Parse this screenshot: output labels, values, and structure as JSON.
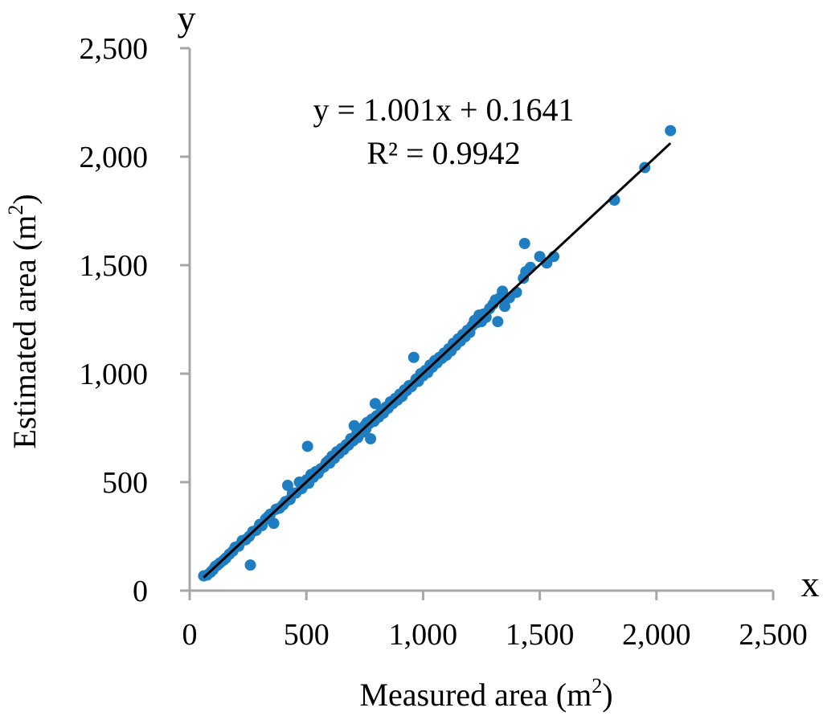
{
  "chart_data": {
    "type": "scatter",
    "xlabel": "Measured area (m",
    "xlabel_sup": "2",
    "xlabel_close": ")",
    "ylabel": "Estimated area (m",
    "ylabel_sup": "2",
    "ylabel_close": ")",
    "x_axis_letter": "x",
    "y_axis_letter": "y",
    "xlim": [
      0,
      2500
    ],
    "ylim": [
      0,
      2500
    ],
    "x_ticks": [
      0,
      500,
      1000,
      1500,
      2000,
      2500
    ],
    "y_ticks": [
      0,
      500,
      1000,
      1500,
      2000,
      2500
    ],
    "x_tick_labels": [
      "0",
      "500",
      "1,000",
      "1,500",
      "2,000",
      "2,500"
    ],
    "y_tick_labels": [
      "0",
      "500",
      "1,000",
      "1,500",
      "2,000",
      "2,500"
    ],
    "grid": false,
    "legend": "none",
    "annotations": {
      "equation": "y = 1.001x + 0.1641",
      "r_squared": "R² = 0.9942"
    },
    "trendline": {
      "slope": 1.001,
      "intercept": 0.1641,
      "x_range": [
        60,
        2060
      ],
      "color": "#000000"
    },
    "marker_color": "#1f7ec1",
    "series": [
      {
        "points": [
          [
            60,
            68
          ],
          [
            75,
            72
          ],
          [
            90,
            85
          ],
          [
            100,
            96
          ],
          [
            110,
            112
          ],
          [
            120,
            118
          ],
          [
            130,
            128
          ],
          [
            145,
            140
          ],
          [
            155,
            150
          ],
          [
            170,
            168
          ],
          [
            185,
            182
          ],
          [
            195,
            200
          ],
          [
            210,
            205
          ],
          [
            225,
            230
          ],
          [
            240,
            235
          ],
          [
            255,
            250
          ],
          [
            260,
            118
          ],
          [
            270,
            272
          ],
          [
            285,
            278
          ],
          [
            300,
            305
          ],
          [
            310,
            300
          ],
          [
            325,
            330
          ],
          [
            335,
            340
          ],
          [
            345,
            352
          ],
          [
            360,
            310
          ],
          [
            370,
            375
          ],
          [
            385,
            380
          ],
          [
            400,
            395
          ],
          [
            410,
            410
          ],
          [
            420,
            485
          ],
          [
            430,
            420
          ],
          [
            440,
            448
          ],
          [
            455,
            450
          ],
          [
            470,
            500
          ],
          [
            480,
            470
          ],
          [
            490,
            488
          ],
          [
            500,
            510
          ],
          [
            505,
            665
          ],
          [
            510,
            495
          ],
          [
            520,
            535
          ],
          [
            530,
            522
          ],
          [
            540,
            548
          ],
          [
            550,
            540
          ],
          [
            560,
            560
          ],
          [
            575,
            570
          ],
          [
            585,
            590
          ],
          [
            595,
            600
          ],
          [
            600,
            588
          ],
          [
            610,
            620
          ],
          [
            620,
            610
          ],
          [
            630,
            640
          ],
          [
            640,
            632
          ],
          [
            650,
            655
          ],
          [
            660,
            650
          ],
          [
            670,
            672
          ],
          [
            680,
            670
          ],
          [
            690,
            700
          ],
          [
            700,
            690
          ],
          [
            705,
            760
          ],
          [
            715,
            720
          ],
          [
            720,
            705
          ],
          [
            730,
            742
          ],
          [
            740,
            730
          ],
          [
            750,
            760
          ],
          [
            755,
            745
          ],
          [
            760,
            775
          ],
          [
            770,
            770
          ],
          [
            775,
            700
          ],
          [
            780,
            790
          ],
          [
            790,
            780
          ],
          [
            795,
            862
          ],
          [
            800,
            805
          ],
          [
            810,
            800
          ],
          [
            820,
            825
          ],
          [
            830,
            818
          ],
          [
            840,
            845
          ],
          [
            850,
            840
          ],
          [
            860,
            870
          ],
          [
            870,
            862
          ],
          [
            880,
            885
          ],
          [
            890,
            878
          ],
          [
            900,
            905
          ],
          [
            910,
            895
          ],
          [
            920,
            925
          ],
          [
            930,
            922
          ],
          [
            940,
            945
          ],
          [
            950,
            940
          ],
          [
            960,
            1075
          ],
          [
            965,
            960
          ],
          [
            970,
            975
          ],
          [
            980,
            965
          ],
          [
            990,
            1000
          ],
          [
            1000,
            990
          ],
          [
            1010,
            1015
          ],
          [
            1020,
            1005
          ],
          [
            1030,
            1040
          ],
          [
            1040,
            1030
          ],
          [
            1050,
            1060
          ],
          [
            1060,
            1050
          ],
          [
            1070,
            1075
          ],
          [
            1080,
            1070
          ],
          [
            1090,
            1095
          ],
          [
            1100,
            1085
          ],
          [
            1110,
            1115
          ],
          [
            1120,
            1105
          ],
          [
            1130,
            1140
          ],
          [
            1140,
            1130
          ],
          [
            1150,
            1160
          ],
          [
            1160,
            1150
          ],
          [
            1170,
            1180
          ],
          [
            1180,
            1170
          ],
          [
            1190,
            1200
          ],
          [
            1200,
            1190
          ],
          [
            1210,
            1220
          ],
          [
            1220,
            1245
          ],
          [
            1230,
            1235
          ],
          [
            1240,
            1270
          ],
          [
            1250,
            1240
          ],
          [
            1260,
            1275
          ],
          [
            1270,
            1260
          ],
          [
            1285,
            1300
          ],
          [
            1300,
            1320
          ],
          [
            1310,
            1340
          ],
          [
            1320,
            1240
          ],
          [
            1330,
            1350
          ],
          [
            1340,
            1380
          ],
          [
            1350,
            1310
          ],
          [
            1370,
            1350
          ],
          [
            1400,
            1375
          ],
          [
            1430,
            1440
          ],
          [
            1435,
            1600
          ],
          [
            1440,
            1470
          ],
          [
            1460,
            1490
          ],
          [
            1500,
            1540
          ],
          [
            1530,
            1510
          ],
          [
            1560,
            1540
          ],
          [
            1820,
            1800
          ],
          [
            1950,
            1950
          ],
          [
            2060,
            2120
          ]
        ]
      }
    ]
  }
}
